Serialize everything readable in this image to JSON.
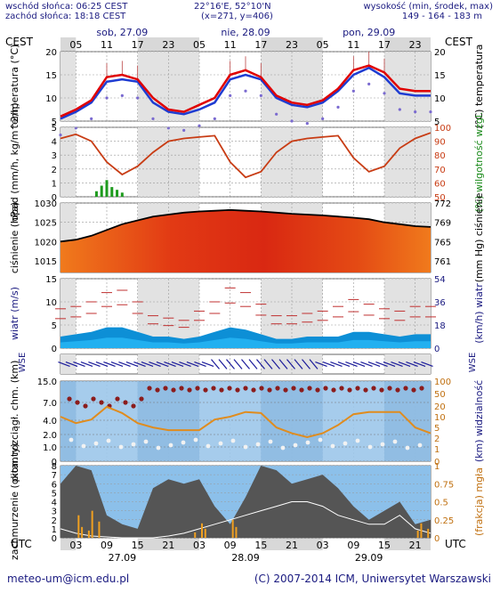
{
  "header": {
    "sunrise": "wschód słońca: 06:25 CEST",
    "sunset": "zachód słońca: 18:18 CEST",
    "coords": "22°16'E, 52°10'N",
    "grid": "(x=271, y=406)",
    "height_label": "wysokość (min, środek, max)",
    "height_values": "149 - 164 - 183 m"
  },
  "footer": {
    "email": "meteo-um@icm.edu.pl",
    "copyright": "(C) 2007-2014 ICM, Uniwersytet Warszawski"
  },
  "top_axis": {
    "zone": "CEST",
    "ticks": [
      "05",
      "11",
      "17",
      "23",
      "05",
      "11",
      "17",
      "23",
      "05",
      "11",
      "17",
      "23"
    ],
    "days": [
      "sob, 27.09",
      "nie, 28.09",
      "pon, 29.09"
    ]
  },
  "bottom_axis": {
    "zone": "UTC",
    "ticks": [
      "03",
      "09",
      "15",
      "21",
      "03",
      "09",
      "15",
      "21",
      "03",
      "09",
      "15",
      "21"
    ],
    "dates": [
      "27.09",
      "28.09",
      "29.09"
    ]
  },
  "colors": {
    "temp_max": "#e00000",
    "temp_mean": "#1e3cd2",
    "precip": "#1e9b1e",
    "humidity": "#c83c14",
    "pressure_line": "#000000",
    "wind_band": "#0d8fd6",
    "visibility": "#e08c1e",
    "cloud_total": "#555555"
  },
  "chart_data": [
    {
      "type": "line",
      "ylabel_left": "temperatura (°C)",
      "ylabel_right": "(°C) temperatura",
      "ylim": [
        5,
        20
      ],
      "yticks": [
        5,
        10,
        15,
        20
      ],
      "x_hours_utc": [
        0,
        3,
        6,
        9,
        12,
        15,
        18,
        21,
        24,
        27,
        30,
        33,
        36,
        39,
        42,
        45,
        48,
        51,
        54,
        57,
        60,
        63,
        66,
        69,
        72
      ],
      "series": [
        {
          "values": [
            6.0,
            7.5,
            9.5,
            14.5,
            15.0,
            14.0,
            10.0,
            7.5,
            7.0,
            8.5,
            10.0,
            15.0,
            16.0,
            14.5,
            10.5,
            9.0,
            8.5,
            9.5,
            12.0,
            16.0,
            17.0,
            15.5,
            12.0,
            11.5,
            11.5
          ]
        },
        {
          "values": [
            5.5,
            7.0,
            9.0,
            13.5,
            14.0,
            13.5,
            9.0,
            7.0,
            6.5,
            7.5,
            9.0,
            14.0,
            15.0,
            14.0,
            10.0,
            8.5,
            8.0,
            9.0,
            11.5,
            15.0,
            16.5,
            14.5,
            11.0,
            10.5,
            10.5
          ]
        }
      ]
    },
    {
      "type": "bar+line",
      "ylabel_left": "opad (mm/h, kg/m^2/h)",
      "ylabel_right": "(%) wilgotność wzgl.",
      "ylim_left": [
        0,
        5
      ],
      "ylim_right": [
        50,
        100
      ],
      "yticks_left": [
        0,
        1,
        2,
        3,
        4,
        5
      ],
      "yticks_right": [
        50,
        60,
        70,
        80,
        90,
        100
      ],
      "precip_hours_utc": [
        7,
        8,
        9,
        10,
        11,
        12
      ],
      "precip_values": [
        0.4,
        0.8,
        1.2,
        0.7,
        0.5,
        0.3
      ],
      "humidity": [
        92,
        95,
        90,
        75,
        66,
        72,
        82,
        90,
        92,
        93,
        94,
        75,
        64,
        68,
        82,
        90,
        92,
        93,
        94,
        78,
        68,
        72,
        85,
        92,
        96
      ]
    },
    {
      "type": "area",
      "ylabel_left": "ciśnienie (hPa)",
      "ylabel_right": "(mm Hg) ciśnienie",
      "ylim_left": [
        1012,
        1030
      ],
      "yticks_left": [
        1015,
        1020,
        1025,
        1030
      ],
      "yticks_right": [
        761,
        765,
        769,
        772
      ],
      "values": [
        1020.0,
        1020.5,
        1021.5,
        1023.0,
        1024.5,
        1025.5,
        1026.5,
        1027.0,
        1027.5,
        1027.8,
        1028.0,
        1028.2,
        1028.0,
        1027.8,
        1027.5,
        1027.2,
        1027.0,
        1026.8,
        1026.5,
        1026.2,
        1025.8,
        1025.0,
        1024.5,
        1024.0,
        1023.8
      ]
    },
    {
      "type": "line",
      "ylabel_left": "wiatr (m/s)",
      "ylabel_right": "(km/h) wiatr",
      "ylim_left": [
        0,
        15
      ],
      "yticks_left": [
        0,
        5,
        10,
        15
      ],
      "yticks_right": [
        0,
        18,
        36,
        54
      ],
      "mean": [
        2.5,
        3.0,
        3.5,
        4.5,
        4.5,
        3.5,
        2.5,
        2.5,
        2.0,
        2.5,
        3.5,
        4.5,
        4.0,
        3.0,
        2.0,
        2.0,
        2.5,
        2.5,
        2.5,
        3.5,
        3.5,
        3.0,
        2.5,
        3.0,
        3.0
      ],
      "gusts": [
        8.5,
        9.0,
        10.0,
        12.0,
        12.5,
        10.0,
        7.0,
        6.5,
        6.0,
        8.0,
        10.0,
        13.0,
        12.0,
        9.5,
        7.0,
        7.0,
        7.5,
        8.0,
        9.0,
        10.5,
        9.5,
        8.5,
        8.0,
        9.0,
        9.0
      ]
    },
    {
      "type": "scatter+line",
      "ylabel_left": "pion. rozciągł. chm. (km)",
      "ylabel_right": "(km) widzialność",
      "yticks_left": [
        0,
        1.0,
        2.0,
        4.0,
        7.0,
        15.0
      ],
      "yticks_right": [
        0,
        1,
        2,
        5,
        10,
        20,
        50,
        100
      ],
      "visibility": [
        12,
        8,
        10,
        22,
        15,
        8,
        6,
        5,
        5,
        5,
        10,
        12,
        16,
        15,
        6,
        4,
        3,
        4,
        7,
        14,
        16,
        16,
        16,
        6,
        4
      ]
    },
    {
      "type": "area",
      "ylabel_left": "zachmurzenie (oktanty)",
      "ylabel_right": "(frakcja) mgła",
      "ylim_left": [
        0,
        8
      ],
      "yticks_left": [
        0,
        1,
        2,
        3,
        4,
        5,
        6,
        7,
        8
      ],
      "yticks_right": [
        0,
        0.25,
        0.5,
        0.75,
        1
      ],
      "cloud_total": [
        6.0,
        8.0,
        7.5,
        2.5,
        1.5,
        1.0,
        5.5,
        6.5,
        6.0,
        6.5,
        3.5,
        1.5,
        4.5,
        8.0,
        7.5,
        6.0,
        6.5,
        7.0,
        5.5,
        3.5,
        2.0,
        3.0,
        4.0,
        1.5,
        2.0
      ],
      "cloud_low": [
        1.0,
        0.5,
        0.2,
        0.1,
        0.0,
        0.0,
        0.0,
        0.2,
        0.5,
        1.0,
        1.5,
        2.0,
        2.5,
        3.0,
        3.5,
        4.0,
        4.0,
        3.5,
        2.5,
        2.0,
        1.5,
        1.5,
        2.5,
        1.0,
        0.5
      ]
    }
  ]
}
